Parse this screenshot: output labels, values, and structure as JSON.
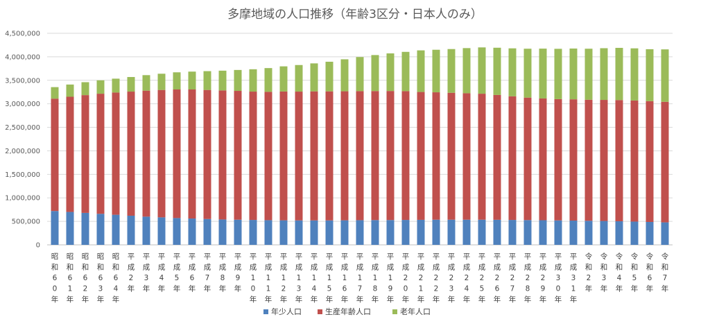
{
  "chart_data": {
    "type": "bar",
    "stacked": true,
    "title": "多摩地域の人口推移（年齢3区分・日本人のみ）",
    "xlabel": "",
    "ylabel": "",
    "ylim": [
      0,
      4500000
    ],
    "yticks": [
      0,
      500000,
      1000000,
      1500000,
      2000000,
      2500000,
      3000000,
      3500000,
      4000000,
      4500000
    ],
    "ytick_labels": [
      "0",
      "500,000",
      "1,000,000",
      "1,500,000",
      "2,000,000",
      "2,500,000",
      "3,000,000",
      "3,500,000",
      "4,000,000",
      "4,500,000"
    ],
    "grid": true,
    "legend_position": "bottom",
    "categories": [
      "昭和60年",
      "昭和61年",
      "昭和62年",
      "昭和63年",
      "昭和64年",
      "平成2年",
      "平成3年",
      "平成4年",
      "平成5年",
      "平成6年",
      "平成7年",
      "平成8年",
      "平成9年",
      "平成10年",
      "平成11年",
      "平成12年",
      "平成13年",
      "平成14年",
      "平成15年",
      "平成16年",
      "平成17年",
      "平成18年",
      "平成19年",
      "平成20年",
      "平成21年",
      "平成22年",
      "平成23年",
      "平成24年",
      "平成25年",
      "平成26年",
      "平成27年",
      "平成28年",
      "平成29年",
      "平成30年",
      "平成31年",
      "令和2年",
      "令和3年",
      "令和4年",
      "令和5年",
      "令和6年",
      "令和7年"
    ],
    "series": [
      {
        "name": "年少人口",
        "color": "#4f81bd",
        "values": [
          720000,
          700000,
          680000,
          660000,
          640000,
          620000,
          600000,
          585000,
          570000,
          560000,
          550000,
          540000,
          535000,
          530000,
          525000,
          522000,
          520000,
          520000,
          520000,
          522000,
          525000,
          527000,
          528000,
          530000,
          532000,
          535000,
          535000,
          535000,
          535000,
          533000,
          530000,
          527000,
          524000,
          520000,
          516000,
          512000,
          508000,
          502000,
          495000,
          487000,
          478000
        ]
      },
      {
        "name": "生産年齢人口",
        "color": "#c0504d",
        "values": [
          2390000,
          2450000,
          2505000,
          2555000,
          2600000,
          2640000,
          2680000,
          2710000,
          2735000,
          2745000,
          2745000,
          2745000,
          2740000,
          2730000,
          2730000,
          2740000,
          2740000,
          2745000,
          2745000,
          2745000,
          2745000,
          2745000,
          2745000,
          2740000,
          2720000,
          2710000,
          2700000,
          2690000,
          2680000,
          2655000,
          2630000,
          2605000,
          2590000,
          2580000,
          2580000,
          2575000,
          2575000,
          2578000,
          2575000,
          2570000,
          2565000
        ]
      },
      {
        "name": "老年人口",
        "color": "#9bbb59",
        "values": [
          245000,
          260000,
          275000,
          285000,
          295000,
          310000,
          330000,
          345000,
          365000,
          380000,
          400000,
          420000,
          445000,
          475000,
          505000,
          535000,
          565000,
          595000,
          630000,
          680000,
          725000,
          765000,
          800000,
          835000,
          885000,
          905000,
          930000,
          960000,
          985000,
          1005000,
          1020000,
          1040000,
          1060000,
          1070000,
          1080000,
          1085000,
          1100000,
          1110000,
          1110000,
          1105000,
          1115000
        ]
      }
    ]
  }
}
